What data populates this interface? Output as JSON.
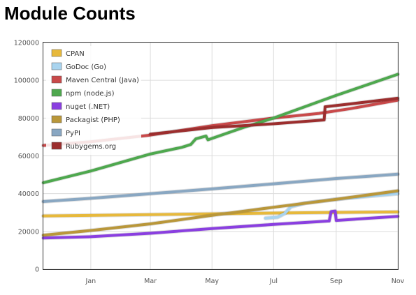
{
  "page": {
    "title": "Module Counts"
  },
  "chart_data": {
    "type": "line",
    "title": "Module Counts",
    "xlabel": "",
    "ylabel": "",
    "ylim": [
      0,
      120000
    ],
    "yticks": [
      0,
      20000,
      40000,
      60000,
      80000,
      100000,
      120000
    ],
    "xlim": [
      "2012-11-15",
      "2013-11-01"
    ],
    "xticks": [
      {
        "label": "Jan",
        "date": "2013-01-01"
      },
      {
        "label": "Mar",
        "date": "2013-03-01"
      },
      {
        "label": "May",
        "date": "2013-05-01"
      },
      {
        "label": "Jul",
        "date": "2013-07-01"
      },
      {
        "label": "Sep",
        "date": "2013-09-01"
      },
      {
        "label": "Nov",
        "date": "2013-11-01"
      }
    ],
    "grid": true,
    "legend_position": "top-left",
    "series": [
      {
        "name": "CPAN",
        "color": "#e7b93c",
        "points": [
          [
            "2012-11-15",
            28200
          ],
          [
            "2013-02-01",
            28700
          ],
          [
            "2013-05-01",
            29300
          ],
          [
            "2013-08-01",
            29900
          ],
          [
            "2013-11-01",
            30300
          ]
        ]
      },
      {
        "name": "GoDoc (Go)",
        "color": "#a9d4ef",
        "points": [
          [
            "2013-06-23",
            27000
          ],
          [
            "2013-07-05",
            27500
          ],
          [
            "2013-07-12",
            29500
          ],
          [
            "2013-07-18",
            33000
          ],
          [
            "2013-08-01",
            35000
          ],
          [
            "2013-09-01",
            37000
          ],
          [
            "2013-10-01",
            38500
          ],
          [
            "2013-11-01",
            40000
          ]
        ]
      },
      {
        "name": "Maven Central (Java)",
        "color": "#c9494a",
        "points": [
          [
            "2012-11-15",
            65500
          ],
          [
            "2013-01-01",
            67500
          ],
          [
            "2013-03-01",
            71000
          ],
          [
            "2013-05-01",
            76000
          ],
          [
            "2013-07-01",
            80000
          ],
          [
            "2013-08-15",
            82500
          ],
          [
            "2013-09-15",
            85000
          ],
          [
            "2013-11-01",
            89500
          ]
        ]
      },
      {
        "name": "npm (node.js)",
        "color": "#4ea84e",
        "points": [
          [
            "2012-11-15",
            45800
          ],
          [
            "2013-01-01",
            52000
          ],
          [
            "2013-03-01",
            61000
          ],
          [
            "2013-04-01",
            64500
          ],
          [
            "2013-04-10",
            66000
          ],
          [
            "2013-04-15",
            69000
          ],
          [
            "2013-04-25",
            70500
          ],
          [
            "2013-04-27",
            68500
          ],
          [
            "2013-06-01",
            75000
          ],
          [
            "2013-07-01",
            80000
          ],
          [
            "2013-09-01",
            92000
          ],
          [
            "2013-11-01",
            103200
          ]
        ]
      },
      {
        "name": "nuget (.NET)",
        "color": "#8a3fe0",
        "points": [
          [
            "2012-11-15",
            16500
          ],
          [
            "2013-01-01",
            17200
          ],
          [
            "2013-03-01",
            19000
          ],
          [
            "2013-05-01",
            21500
          ],
          [
            "2013-07-01",
            23700
          ],
          [
            "2013-08-25",
            25500
          ],
          [
            "2013-08-27",
            30500
          ],
          [
            "2013-08-31",
            30800
          ],
          [
            "2013-09-01",
            25800
          ],
          [
            "2013-11-01",
            28000
          ]
        ]
      },
      {
        "name": "Packagist (PHP)",
        "color": "#b9973a",
        "points": [
          [
            "2012-11-15",
            18000
          ],
          [
            "2013-01-01",
            20500
          ],
          [
            "2013-03-01",
            24000
          ],
          [
            "2013-05-01",
            28500
          ],
          [
            "2013-07-01",
            32800
          ],
          [
            "2013-09-01",
            37000
          ],
          [
            "2013-11-01",
            41500
          ]
        ]
      },
      {
        "name": "PyPI",
        "color": "#89a7c2",
        "points": [
          [
            "2012-11-15",
            35800
          ],
          [
            "2013-01-01",
            37500
          ],
          [
            "2013-03-01",
            40000
          ],
          [
            "2013-05-01",
            42500
          ],
          [
            "2013-07-01",
            45200
          ],
          [
            "2013-09-01",
            48000
          ],
          [
            "2013-11-01",
            50300
          ]
        ]
      },
      {
        "name": "Rubygems.org",
        "color": "#9c2e2e",
        "points": [
          [
            "2013-03-01",
            71500
          ],
          [
            "2013-05-01",
            75000
          ],
          [
            "2013-07-01",
            77000
          ],
          [
            "2013-08-20",
            79000
          ],
          [
            "2013-08-21",
            86000
          ],
          [
            "2013-09-15",
            87500
          ],
          [
            "2013-11-01",
            90500
          ]
        ]
      }
    ]
  }
}
